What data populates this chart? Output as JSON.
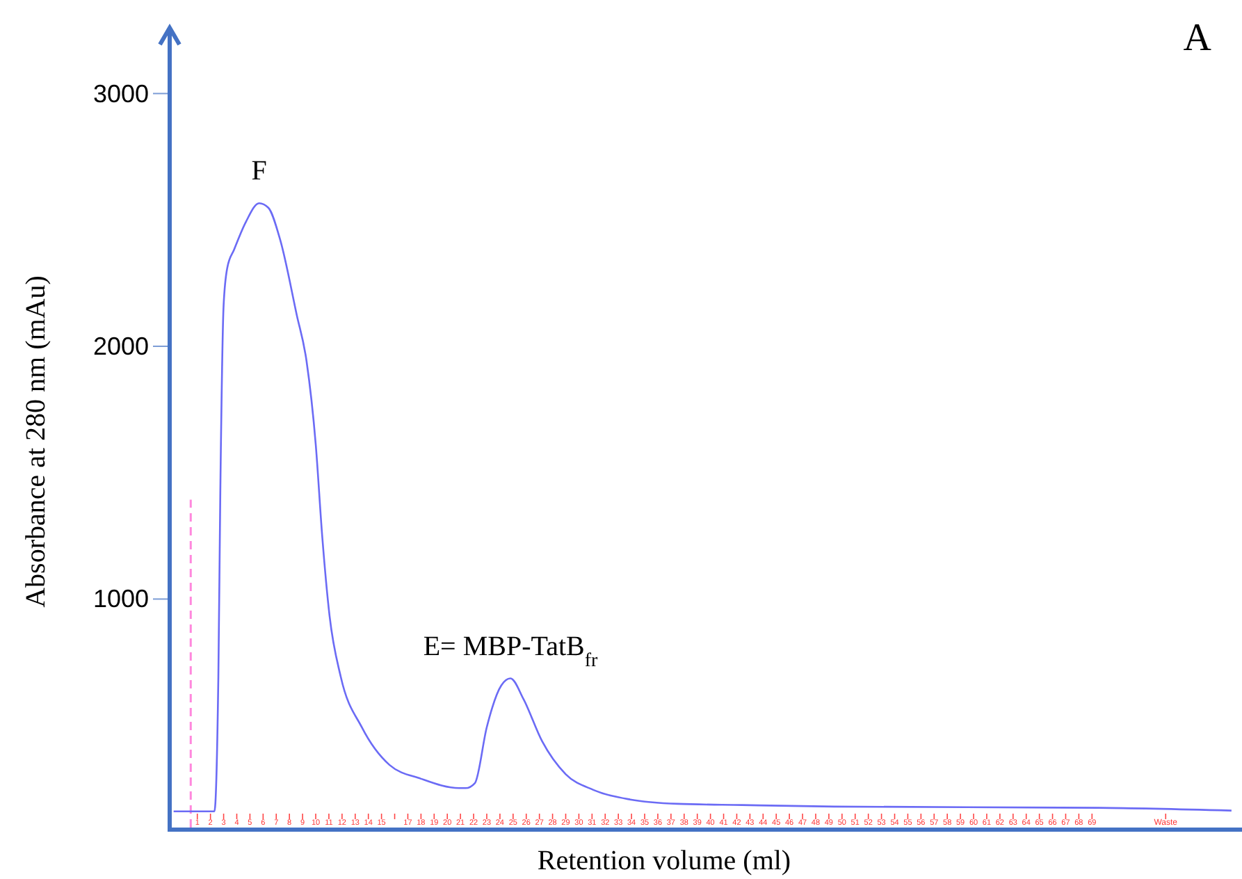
{
  "chart_data": {
    "type": "line",
    "xlabel": "Retention volume (ml)",
    "ylabel": "Absorbance at 280 nm (mAu)",
    "xlim": [
      -1.6,
      79.9
    ],
    "ylim": [
      96,
      3260
    ],
    "yticks": [
      1000,
      2000,
      3000
    ],
    "xticks": [
      {
        "value": 0.5,
        "label": "1"
      },
      {
        "value": 1.5,
        "label": "2"
      },
      {
        "value": 2.5,
        "label": "3"
      },
      {
        "value": 3.5,
        "label": "4"
      },
      {
        "value": 4.5,
        "label": "5"
      },
      {
        "value": 5.5,
        "label": "6"
      },
      {
        "value": 6.5,
        "label": "7"
      },
      {
        "value": 7.5,
        "label": "8"
      },
      {
        "value": 8.5,
        "label": "9"
      },
      {
        "value": 9.5,
        "label": "10"
      },
      {
        "value": 10.5,
        "label": "11"
      },
      {
        "value": 11.5,
        "label": "12"
      },
      {
        "value": 12.5,
        "label": "13"
      },
      {
        "value": 13.5,
        "label": "14"
      },
      {
        "value": 14.5,
        "label": "15"
      },
      {
        "value": 15.5,
        "label": null
      },
      {
        "value": 16.5,
        "label": "17"
      },
      {
        "value": 17.5,
        "label": "18"
      },
      {
        "value": 18.5,
        "label": "19"
      },
      {
        "value": 19.5,
        "label": "20"
      },
      {
        "value": 20.5,
        "label": "21"
      },
      {
        "value": 21.5,
        "label": "22"
      },
      {
        "value": 22.5,
        "label": "23"
      },
      {
        "value": 23.5,
        "label": "24"
      },
      {
        "value": 24.5,
        "label": "25"
      },
      {
        "value": 25.5,
        "label": "26"
      },
      {
        "value": 26.5,
        "label": "27"
      },
      {
        "value": 27.5,
        "label": "28"
      },
      {
        "value": 28.5,
        "label": "29"
      },
      {
        "value": 29.5,
        "label": "30"
      },
      {
        "value": 30.5,
        "label": "31"
      },
      {
        "value": 31.5,
        "label": "32"
      },
      {
        "value": 32.5,
        "label": "33"
      },
      {
        "value": 33.5,
        "label": "34"
      },
      {
        "value": 34.5,
        "label": "35"
      },
      {
        "value": 35.5,
        "label": "36"
      },
      {
        "value": 36.5,
        "label": "37"
      },
      {
        "value": 37.5,
        "label": "38"
      },
      {
        "value": 38.5,
        "label": "39"
      },
      {
        "value": 39.5,
        "label": "40"
      },
      {
        "value": 40.5,
        "label": "41"
      },
      {
        "value": 41.5,
        "label": "42"
      },
      {
        "value": 42.5,
        "label": "43"
      },
      {
        "value": 43.5,
        "label": "44"
      },
      {
        "value": 44.5,
        "label": "45"
      },
      {
        "value": 45.5,
        "label": "46"
      },
      {
        "value": 46.5,
        "label": "47"
      },
      {
        "value": 47.5,
        "label": "48"
      },
      {
        "value": 48.5,
        "label": "49"
      },
      {
        "value": 49.5,
        "label": "50"
      },
      {
        "value": 50.5,
        "label": "51"
      },
      {
        "value": 51.5,
        "label": "52"
      },
      {
        "value": 52.5,
        "label": "53"
      },
      {
        "value": 53.5,
        "label": "54"
      },
      {
        "value": 54.5,
        "label": "55"
      },
      {
        "value": 55.5,
        "label": "56"
      },
      {
        "value": 56.5,
        "label": "57"
      },
      {
        "value": 57.5,
        "label": "58"
      },
      {
        "value": 58.5,
        "label": "59"
      },
      {
        "value": 59.5,
        "label": "60"
      },
      {
        "value": 60.5,
        "label": "61"
      },
      {
        "value": 61.5,
        "label": "62"
      },
      {
        "value": 62.5,
        "label": "63"
      },
      {
        "value": 63.5,
        "label": "64"
      },
      {
        "value": 64.5,
        "label": "65"
      },
      {
        "value": 65.5,
        "label": "66"
      },
      {
        "value": 66.5,
        "label": "67"
      },
      {
        "value": 67.5,
        "label": "68"
      },
      {
        "value": 68.5,
        "label": "69"
      },
      {
        "value": 74.1,
        "label": "Waste"
      }
    ],
    "series": [
      {
        "color": "#6b6bf5",
        "x": [
          -1.3,
          1.8,
          2.1,
          2.25,
          2.5,
          2.78,
          3.3,
          4.2,
          5.2,
          5.9,
          6.8,
          8.05,
          8.8,
          9.5,
          10.0,
          10.55,
          11.4,
          13.0,
          15.1,
          17.5,
          20.4,
          20.9,
          21.6,
          22.5,
          23.6,
          24.3,
          25.3,
          26.7,
          28.5,
          30.6,
          33.4,
          37.0,
          41.9,
          48.9,
          69.0,
          79.1
        ],
        "values": [
          160,
          160,
          693,
          1430,
          2163,
          2311,
          2383,
          2493,
          2566,
          2548,
          2421,
          2126,
          1942,
          1612,
          1244,
          934,
          693,
          493,
          344,
          289,
          252,
          252,
          272,
          493,
          658,
          686,
          603,
          438,
          307,
          245,
          207,
          190,
          185,
          179,
          174,
          163
        ]
      }
    ],
    "ref_lines": [
      {
        "axis": "x",
        "value": 0,
        "color": "#ff88dd",
        "line_style": "dashed"
      }
    ],
    "annotations": [
      {
        "text": "F",
        "x": 5.2,
        "y": 2566
      },
      {
        "text": "E= MBP-TatB$_{fr}$",
        "x": 24.3,
        "y": 686
      },
      "A"
    ],
    "grid": false,
    "marker": "none",
    "line_style": "solid"
  }
}
